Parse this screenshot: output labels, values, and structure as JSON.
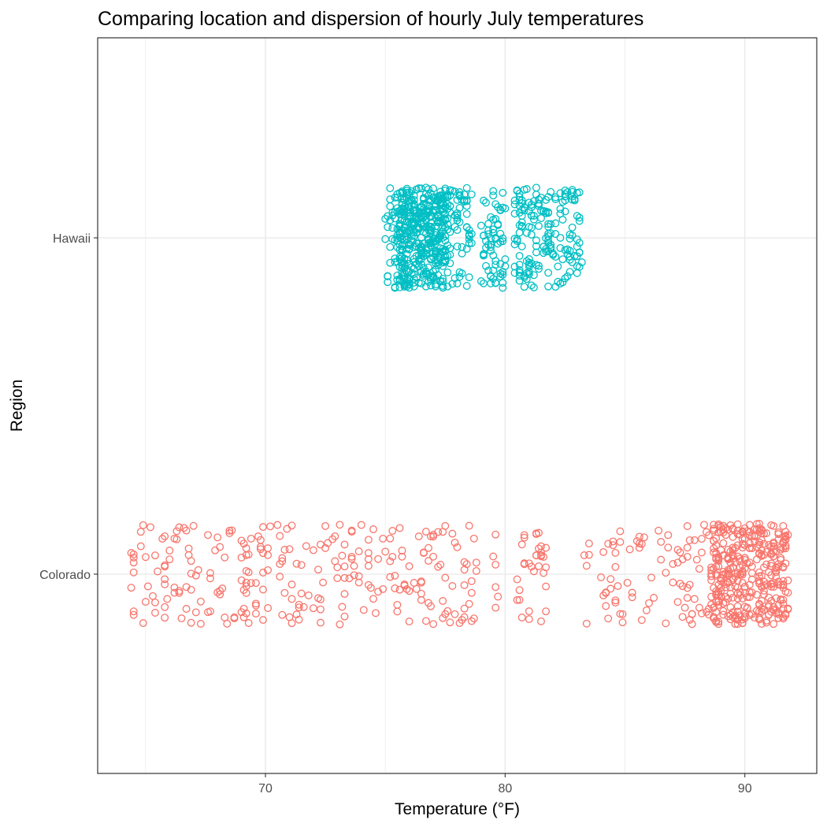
{
  "chart_data": {
    "type": "scatter",
    "title": "Comparing location and dispersion of hourly July temperatures",
    "xlabel": "Temperature (°F)",
    "ylabel": "Region",
    "xlim": [
      63,
      93
    ],
    "x_major_ticks": [
      70,
      80,
      90
    ],
    "x_tick_labels": [
      "70",
      "80",
      "90"
    ],
    "x_minor_ticks": [
      65,
      75,
      85
    ],
    "categories": [
      "Colorado",
      "Hawaii"
    ],
    "jitter_height": 0.3,
    "grid": true,
    "legend": "none",
    "series": [
      {
        "category": "Colorado",
        "color": "#F8766D",
        "marker": "open-circle",
        "n": 744,
        "distribution": {
          "min": 64.3,
          "max": 91.8,
          "gaps": [
            [
              78.8,
              79.5
            ],
            [
              79.7,
              80.5
            ],
            [
              81.8,
              83.2
            ],
            [
              83.5,
              84.0
            ]
          ],
          "dense_range": [
            88.5,
            91.8
          ]
        }
      },
      {
        "category": "Hawaii",
        "color": "#00BFC4",
        "marker": "open-circle",
        "n": 744,
        "distribution": {
          "min": 75.0,
          "max": 83.2,
          "gaps": [
            [
              78.6,
              79.0
            ],
            [
              80.0,
              80.4
            ]
          ],
          "dense_range": [
            75.5,
            77.6
          ]
        }
      }
    ]
  }
}
